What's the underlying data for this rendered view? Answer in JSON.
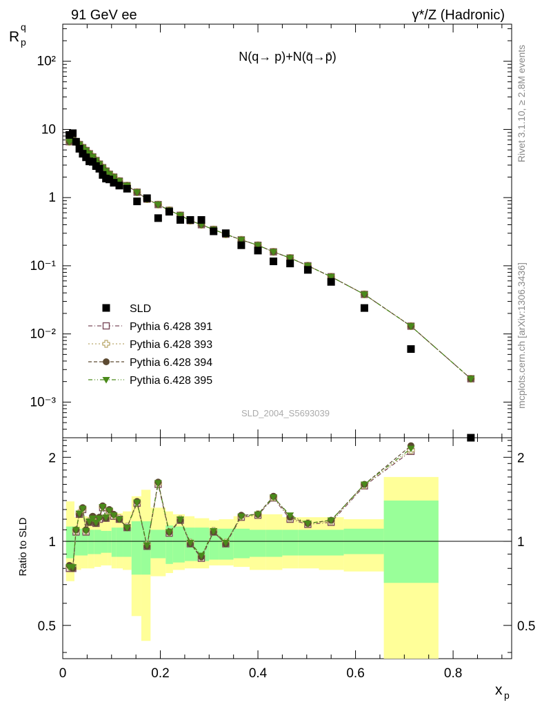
{
  "header": {
    "left": "91 GeV ee",
    "right": "γ*/Z (Hadronic)"
  },
  "side": {
    "rivet": "Rivet 3.1.10, ≥ 2.8M events",
    "mcplots": "mcplots.cern.ch [arXiv:1306.3436]"
  },
  "top_panel": {
    "ylabel_main": "R",
    "ylabel_sup": "q",
    "ylabel_sub": "p",
    "annotation": "N(q→ p)+N(q̄→p̄)",
    "watermark": "SLD_2004_S5693039",
    "yticks": [
      "10⁻³",
      "10⁻²",
      "10⁻¹",
      "1",
      "10",
      "10²"
    ]
  },
  "bottom_panel": {
    "ylabel": "Ratio to SLD",
    "yticks": [
      "0.5",
      "1",
      "2"
    ],
    "xticks": [
      "0",
      "0.2",
      "0.4",
      "0.6",
      "0.8"
    ],
    "xlabel": "x",
    "xlabel_sub": "p"
  },
  "legend": [
    "SLD",
    "Pythia 6.428 391",
    "Pythia 6.428 393",
    "Pythia 6.428 394",
    "Pythia 6.428 395"
  ],
  "colors": {
    "data": "#000000",
    "p391": "#7a4a5a",
    "p393": "#b9a76a",
    "p394": "#5c4a32",
    "p395": "#4a8a1a",
    "band_inner": "#99ff99",
    "band_outer": "#ffff99"
  },
  "chart_data": [
    {
      "type": "scatter",
      "title": "",
      "xlabel": "x_p",
      "ylabel": "R_p^q",
      "yscale": "log",
      "xlim": [
        0,
        0.92
      ],
      "ylim": [
        0.0003,
        350
      ],
      "x": [
        0.0136,
        0.0206,
        0.0273,
        0.0341,
        0.0409,
        0.0477,
        0.0545,
        0.0614,
        0.0682,
        0.075,
        0.0818,
        0.0886,
        0.0955,
        0.1045,
        0.1159,
        0.1318,
        0.1523,
        0.1727,
        0.1955,
        0.2182,
        0.2409,
        0.2614,
        0.2841,
        0.3091,
        0.3341,
        0.3659,
        0.4,
        0.4318,
        0.4659,
        0.5023,
        0.55,
        0.6182,
        0.7136,
        0.8364
      ],
      "series": [
        {
          "name": "SLD",
          "values": [
            8.3,
            8.8,
            6.6,
            5.2,
            4.4,
            3.9,
            3.4,
            3.35,
            2.9,
            2.65,
            2.15,
            1.9,
            1.85,
            1.65,
            1.5,
            1.35,
            0.88,
            0.98,
            0.5,
            0.62,
            0.47,
            0.47,
            0.47,
            0.32,
            0.3,
            0.2,
            0.167,
            0.116,
            0.108,
            0.087,
            0.058,
            0.024,
            0.006,
            0.0003
          ]
        },
        {
          "name": "Pythia 6.428 391",
          "values": [
            6.6,
            6.9,
            6.6,
            6.0,
            5.4,
            4.9,
            4.4,
            3.95,
            3.5,
            3.1,
            2.75,
            2.45,
            2.2,
            2.0,
            1.75,
            1.5,
            1.2,
            0.95,
            0.79,
            0.65,
            0.55,
            0.46,
            0.4,
            0.34,
            0.29,
            0.24,
            0.2,
            0.16,
            0.13,
            0.1,
            0.069,
            0.038,
            0.013,
            0.0022
          ]
        },
        {
          "name": "Pythia 6.428 393",
          "values": [
            6.6,
            6.9,
            6.6,
            6.0,
            5.4,
            4.9,
            4.4,
            3.95,
            3.5,
            3.1,
            2.75,
            2.45,
            2.2,
            2.0,
            1.75,
            1.5,
            1.2,
            0.95,
            0.79,
            0.65,
            0.55,
            0.46,
            0.4,
            0.34,
            0.29,
            0.24,
            0.2,
            0.16,
            0.13,
            0.1,
            0.069,
            0.038,
            0.013,
            0.0022
          ]
        },
        {
          "name": "Pythia 6.428 394",
          "values": [
            6.6,
            6.9,
            6.6,
            6.0,
            5.4,
            4.9,
            4.4,
            3.95,
            3.5,
            3.1,
            2.75,
            2.45,
            2.2,
            2.0,
            1.75,
            1.5,
            1.2,
            0.95,
            0.79,
            0.65,
            0.55,
            0.46,
            0.4,
            0.34,
            0.29,
            0.24,
            0.2,
            0.16,
            0.13,
            0.1,
            0.069,
            0.038,
            0.013,
            0.0022
          ]
        },
        {
          "name": "Pythia 6.428 395",
          "values": [
            6.6,
            6.9,
            6.6,
            6.0,
            5.4,
            4.9,
            4.4,
            3.95,
            3.5,
            3.1,
            2.75,
            2.45,
            2.2,
            2.0,
            1.75,
            1.5,
            1.2,
            0.95,
            0.79,
            0.65,
            0.55,
            0.46,
            0.4,
            0.34,
            0.29,
            0.24,
            0.2,
            0.16,
            0.13,
            0.1,
            0.069,
            0.038,
            0.013,
            0.0022
          ]
        }
      ]
    },
    {
      "type": "line",
      "title": "",
      "xlabel": "x_p",
      "ylabel": "Ratio to SLD",
      "yscale": "log",
      "xlim": [
        0,
        0.92
      ],
      "ylim": [
        0.38,
        2.35
      ],
      "reference_line": 1,
      "x": [
        0.0136,
        0.0206,
        0.0273,
        0.0341,
        0.0409,
        0.0477,
        0.0545,
        0.0614,
        0.0682,
        0.075,
        0.0818,
        0.0886,
        0.0955,
        0.1045,
        0.1159,
        0.1318,
        0.1523,
        0.1727,
        0.1955,
        0.2182,
        0.2409,
        0.2614,
        0.2841,
        0.3091,
        0.3341,
        0.3659,
        0.4,
        0.4318,
        0.4659,
        0.5023,
        0.55,
        0.6182,
        0.7136
      ],
      "series": [
        {
          "name": "Pythia 6.428 391",
          "values": [
            0.8,
            0.8,
            1.08,
            1.25,
            1.3,
            1.08,
            1.17,
            1.21,
            1.16,
            1.2,
            1.32,
            1.21,
            1.28,
            1.23,
            1.2,
            1.12,
            1.37,
            0.96,
            1.6,
            1.07,
            1.19,
            0.98,
            0.87,
            1.08,
            0.98,
            1.22,
            1.24,
            1.43,
            1.2,
            1.15,
            1.17,
            1.58,
            2.1
          ]
        },
        {
          "name": "Pythia 6.428 393",
          "values": [
            0.81,
            0.81,
            1.09,
            1.26,
            1.31,
            1.09,
            1.18,
            1.22,
            1.17,
            1.21,
            1.33,
            1.22,
            1.29,
            1.24,
            1.21,
            1.13,
            1.38,
            0.97,
            1.61,
            1.08,
            1.2,
            0.99,
            0.88,
            1.09,
            0.99,
            1.23,
            1.25,
            1.44,
            1.21,
            1.16,
            1.18,
            1.59,
            2.12
          ]
        },
        {
          "name": "Pythia 6.428 394",
          "values": [
            0.82,
            0.8,
            1.1,
            1.25,
            1.32,
            1.1,
            1.17,
            1.23,
            1.16,
            1.22,
            1.34,
            1.21,
            1.3,
            1.25,
            1.2,
            1.12,
            1.39,
            0.96,
            1.63,
            1.08,
            1.19,
            0.98,
            0.88,
            1.08,
            0.98,
            1.24,
            1.25,
            1.45,
            1.22,
            1.16,
            1.19,
            1.6,
            2.2
          ]
        },
        {
          "name": "Pythia 6.428 395",
          "values": [
            0.81,
            0.81,
            1.1,
            1.26,
            1.31,
            1.09,
            1.18,
            1.21,
            1.17,
            1.21,
            1.33,
            1.22,
            1.29,
            1.24,
            1.2,
            1.12,
            1.38,
            0.97,
            1.62,
            1.08,
            1.2,
            0.99,
            0.89,
            1.09,
            0.99,
            1.23,
            1.25,
            1.44,
            1.24,
            1.16,
            1.19,
            1.6,
            2.15
          ]
        }
      ],
      "bands": {
        "edges": [
          0.0068,
          0.0239,
          0.0375,
          0.0511,
          0.0648,
          0.0784,
          0.092,
          0.1,
          0.109,
          0.123,
          0.141,
          0.161,
          0.18,
          0.211,
          0.226,
          0.25,
          0.27,
          0.3,
          0.32,
          0.35,
          0.383,
          0.416,
          0.45,
          0.483,
          0.525,
          0.576,
          0.658,
          0.77
        ],
        "inner_lo": [
          0.87,
          0.89,
          0.89,
          0.9,
          0.9,
          0.91,
          0.91,
          0.88,
          0.88,
          0.88,
          0.76,
          0.76,
          0.87,
          0.83,
          0.84,
          0.85,
          0.85,
          0.86,
          0.86,
          0.87,
          0.88,
          0.88,
          0.89,
          0.89,
          0.89,
          0.9,
          0.71
        ],
        "inner_hi": [
          1.13,
          1.11,
          1.11,
          1.1,
          1.1,
          1.09,
          1.09,
          1.12,
          1.12,
          1.12,
          1.18,
          1.18,
          1.1,
          1.14,
          1.13,
          1.12,
          1.12,
          1.11,
          1.11,
          1.11,
          1.1,
          1.1,
          1.1,
          1.1,
          1.1,
          1.11,
          1.4
        ],
        "outer_lo": [
          0.72,
          0.79,
          0.8,
          0.8,
          0.81,
          0.82,
          0.82,
          0.8,
          0.8,
          0.79,
          0.54,
          0.44,
          0.75,
          0.77,
          0.79,
          0.8,
          0.8,
          0.82,
          0.82,
          0.81,
          0.79,
          0.79,
          0.8,
          0.8,
          0.79,
          0.78,
          0.35
        ],
        "outer_hi": [
          1.39,
          1.22,
          1.23,
          1.22,
          1.22,
          1.23,
          1.23,
          1.26,
          1.26,
          1.28,
          1.45,
          1.53,
          1.32,
          1.28,
          1.25,
          1.23,
          1.21,
          1.19,
          1.2,
          1.23,
          1.25,
          1.25,
          1.22,
          1.22,
          1.22,
          1.2,
          1.7
        ]
      }
    }
  ]
}
